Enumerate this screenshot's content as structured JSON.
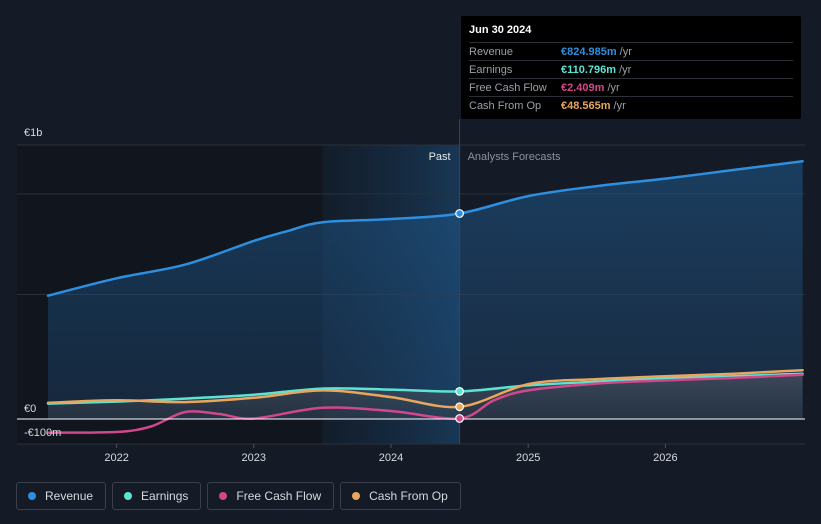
{
  "chart_data": {
    "type": "area",
    "currency_note": "EUR",
    "y_labels": [
      "€1b",
      "€0",
      "-€100m"
    ],
    "ylim": [
      -100,
      1100
    ],
    "x_ticks": [
      "2022",
      "2023",
      "2024",
      "2025",
      "2026"
    ],
    "x_tick_values": [
      2022.0,
      2023.0,
      2024.0,
      2025.0,
      2026.0
    ],
    "xlim": [
      2021.25,
      2027.0
    ],
    "past_label": "Past",
    "forecast_label": "Analysts Forecasts",
    "highlight_start": 2023.5,
    "divider": 2024.5,
    "series": [
      {
        "name": "Revenue",
        "color": "#2e8fe0",
        "x": [
          2021.5,
          2022.0,
          2022.5,
          2023.0,
          2023.25,
          2023.5,
          2024.0,
          2024.5,
          2025.0,
          2025.5,
          2026.0,
          2026.5,
          2027.0
        ],
        "values": [
          495,
          565,
          620,
          715,
          755,
          790,
          803,
          825,
          895,
          935,
          965,
          1000,
          1035
        ]
      },
      {
        "name": "Earnings",
        "color": "#5de3d3",
        "x": [
          2021.5,
          2022.0,
          2022.5,
          2023.0,
          2023.5,
          2024.0,
          2024.5,
          2025.0,
          2025.5,
          2026.0,
          2026.5,
          2027.0
        ],
        "values": [
          62,
          70,
          82,
          97,
          122,
          118,
          111,
          135,
          150,
          163,
          172,
          182
        ]
      },
      {
        "name": "Free Cash Flow",
        "color": "#d2478b",
        "x": [
          2021.5,
          2022.0,
          2022.25,
          2022.5,
          2022.75,
          2023.0,
          2023.5,
          2024.0,
          2024.5,
          2024.75,
          2025.0,
          2025.5,
          2026.0,
          2026.5,
          2027.0
        ],
        "values": [
          -55,
          -52,
          -30,
          28,
          20,
          2,
          45,
          32,
          2,
          75,
          115,
          142,
          155,
          165,
          178
        ]
      },
      {
        "name": "Cash From Op",
        "color": "#e8a75c",
        "x": [
          2021.5,
          2022.0,
          2022.5,
          2023.0,
          2023.5,
          2024.0,
          2024.5,
          2025.0,
          2025.5,
          2026.0,
          2026.5,
          2027.0
        ],
        "values": [
          65,
          75,
          68,
          85,
          115,
          88,
          49,
          140,
          160,
          172,
          182,
          196
        ]
      }
    ],
    "highlight_x": 2024.5
  },
  "tooltip": {
    "date": "Jun 30 2024",
    "rows": [
      {
        "label": "Revenue",
        "value": "€824.985m",
        "unit": "/yr",
        "color": "#2e8fe0"
      },
      {
        "label": "Earnings",
        "value": "€110.796m",
        "unit": "/yr",
        "color": "#5de3d3"
      },
      {
        "label": "Free Cash Flow",
        "value": "€2.409m",
        "unit": "/yr",
        "color": "#d2478b"
      },
      {
        "label": "Cash From Op",
        "value": "€48.565m",
        "unit": "/yr",
        "color": "#e8a75c"
      }
    ]
  },
  "legend": [
    {
      "label": "Revenue",
      "color": "#2e8fe0"
    },
    {
      "label": "Earnings",
      "color": "#5de3d3"
    },
    {
      "label": "Free Cash Flow",
      "color": "#d2478b"
    },
    {
      "label": "Cash From Op",
      "color": "#e8a75c"
    }
  ]
}
